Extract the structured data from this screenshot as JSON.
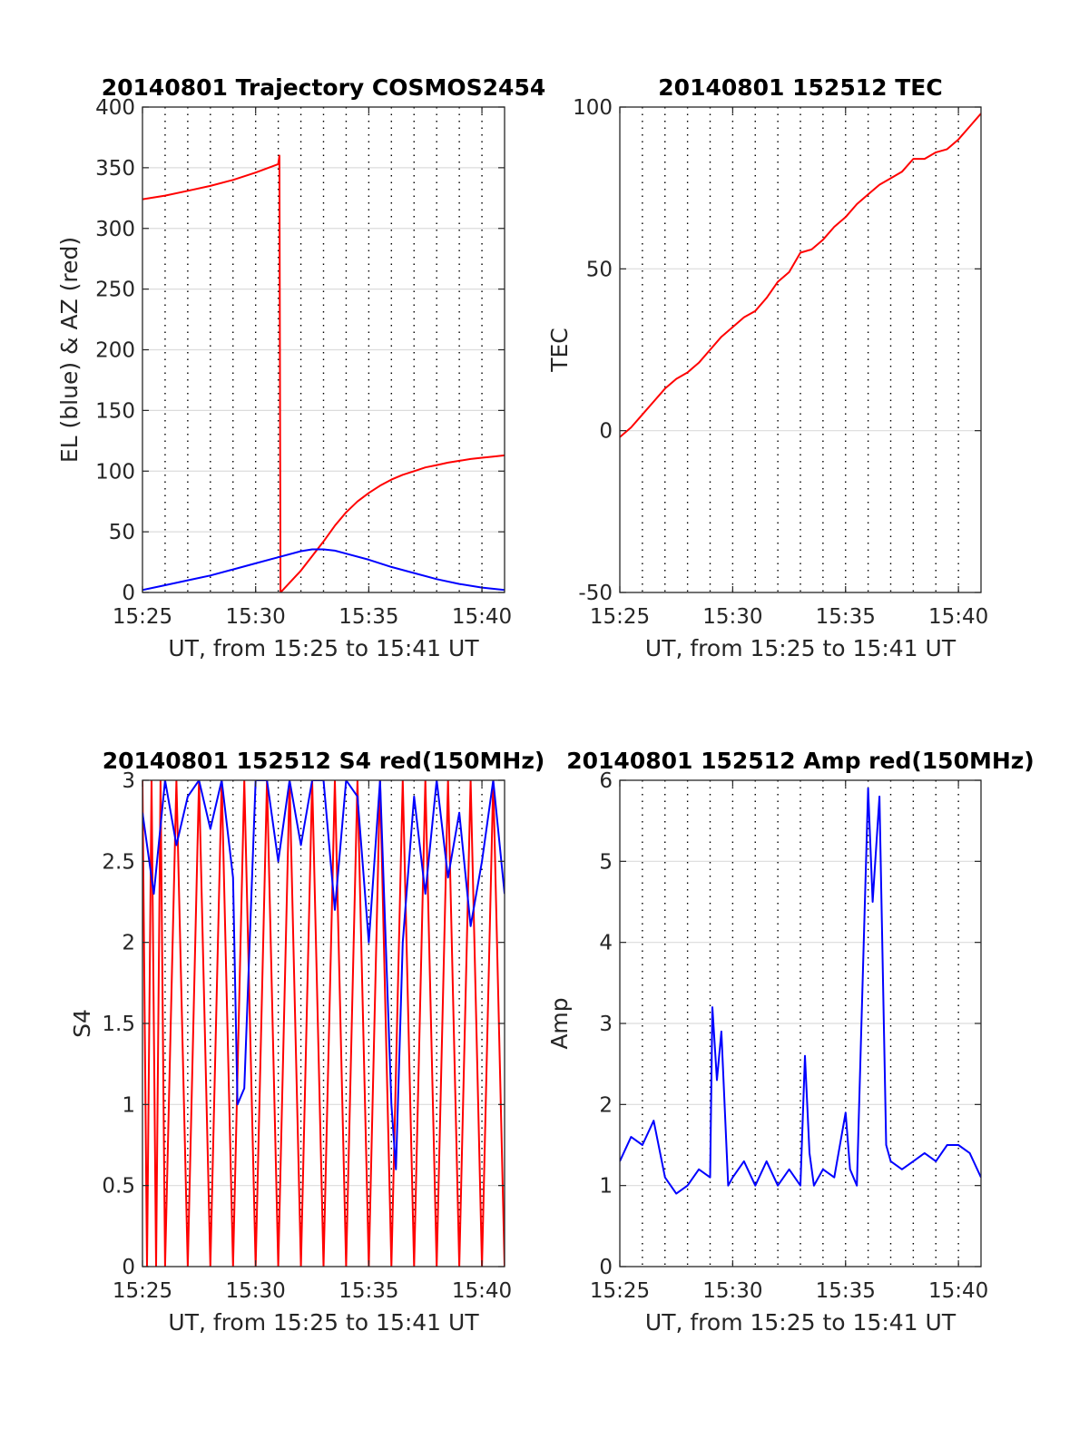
{
  "figure": {
    "background": "#ffffff",
    "colors": {
      "red": "#ff0000",
      "blue": "#0000ff",
      "axis": "#262626",
      "grid": "#dcdcdc",
      "vgrid": "#000000"
    }
  },
  "chart_data": [
    {
      "id": "trajectory",
      "type": "line",
      "title": "20140801 Trajectory COSMOS2454",
      "xlabel": "UT, from 15:25 to 15:41 UT",
      "ylabel": "EL (blue) & AZ (red)",
      "xlim": [
        0,
        16
      ],
      "ylim": [
        0,
        400
      ],
      "x_ticks": [
        0,
        5,
        10,
        15
      ],
      "x_tick_labels": [
        "15:25",
        "15:30",
        "15:35",
        "15:40"
      ],
      "y_ticks": [
        0,
        50,
        100,
        150,
        200,
        250,
        300,
        350,
        400
      ],
      "y_tick_labels": [
        "0",
        "50",
        "100",
        "150",
        "200",
        "250",
        "300",
        "350",
        "400"
      ],
      "vgrid_minutes": [
        1,
        2,
        3,
        4,
        5,
        6,
        7,
        8,
        9,
        10,
        11,
        12,
        13,
        14,
        15
      ],
      "grid": true,
      "series": [
        {
          "color": "#ff0000",
          "x": [
            0,
            1,
            2,
            3,
            4,
            5,
            6,
            6.05,
            6.1,
            6.5,
            7,
            7.5,
            8,
            8.5,
            9,
            9.5,
            10,
            10.5,
            11,
            11.5,
            12,
            12.5,
            13,
            13.5,
            14,
            14.5,
            15,
            15.5,
            16
          ],
          "y": [
            324,
            327,
            331,
            335,
            340,
            346,
            353,
            360,
            0,
            8,
            18,
            30,
            42,
            55,
            66,
            75,
            82,
            88,
            93,
            97,
            100,
            103,
            105,
            107,
            108.5,
            110,
            111,
            112,
            113
          ]
        },
        {
          "color": "#0000ff",
          "x": [
            0,
            1,
            2,
            3,
            4,
            5,
            6,
            7,
            7.5,
            8,
            8.5,
            9,
            10,
            11,
            12,
            13,
            14,
            15,
            16
          ],
          "y": [
            2,
            6,
            10,
            14,
            19,
            24,
            29,
            34,
            35.5,
            35.5,
            34.5,
            32,
            27,
            21,
            16,
            11,
            7,
            4,
            2
          ]
        }
      ]
    },
    {
      "id": "tec",
      "type": "line",
      "title": "20140801 152512 TEC",
      "xlabel": "UT, from 15:25 to 15:41 UT",
      "ylabel": "TEC",
      "xlim": [
        0,
        16
      ],
      "ylim": [
        -50,
        100
      ],
      "x_ticks": [
        0,
        5,
        10,
        15
      ],
      "x_tick_labels": [
        "15:25",
        "15:30",
        "15:35",
        "15:40"
      ],
      "y_ticks": [
        -50,
        0,
        50,
        100
      ],
      "y_tick_labels": [
        "-50",
        "0",
        "50",
        "100"
      ],
      "vgrid_minutes": [
        1,
        2,
        3,
        4,
        5,
        6,
        7,
        8,
        9,
        10,
        11,
        12,
        13,
        14,
        15
      ],
      "grid": true,
      "series": [
        {
          "color": "#ff0000",
          "x": [
            0,
            0.5,
            1,
            1.5,
            2,
            2.5,
            3,
            3.5,
            4,
            4.5,
            5,
            5.5,
            6,
            6.5,
            7,
            7.5,
            8,
            8.5,
            9,
            9.5,
            10,
            10.5,
            11,
            11.5,
            12,
            12.5,
            13,
            13.5,
            14,
            14.5,
            15,
            15.5,
            16
          ],
          "y": [
            -2,
            1,
            5,
            9,
            13,
            16,
            18,
            21,
            25,
            29,
            32,
            35,
            37,
            41,
            46,
            49,
            55,
            56,
            59,
            63,
            66,
            70,
            73,
            76,
            78,
            80,
            84,
            84,
            86,
            87,
            90,
            94,
            98
          ]
        }
      ]
    },
    {
      "id": "s4",
      "type": "line",
      "title": "20140801 152512 S4 red(150MHz)",
      "xlabel": "UT, from 15:25 to 15:41 UT",
      "ylabel": "S4",
      "xlim": [
        0,
        16
      ],
      "ylim": [
        0,
        3
      ],
      "x_ticks": [
        0,
        5,
        10,
        15
      ],
      "x_tick_labels": [
        "15:25",
        "15:30",
        "15:35",
        "15:40"
      ],
      "y_ticks": [
        0,
        0.5,
        1,
        1.5,
        2,
        2.5,
        3
      ],
      "y_tick_labels": [
        "0",
        "0.5",
        "1",
        "1.5",
        "2",
        "2.5",
        "3"
      ],
      "vgrid_minutes": [
        1,
        2,
        3,
        4,
        5,
        6,
        7,
        8,
        9,
        10,
        11,
        12,
        13,
        14,
        15
      ],
      "grid": true,
      "series": [
        {
          "color": "#ff0000",
          "x": [
            0,
            0.2,
            0.4,
            0.6,
            0.8,
            1,
            1.5,
            2,
            2.5,
            3,
            3.5,
            4,
            4.5,
            5,
            5.5,
            6,
            6.5,
            7,
            7.5,
            8,
            8.5,
            9,
            9.5,
            10,
            10.5,
            11,
            11.5,
            12,
            12.5,
            13,
            13.5,
            14,
            14.5,
            15,
            15.5,
            16
          ],
          "y": [
            3,
            0,
            3,
            0,
            3,
            0,
            3,
            0,
            3,
            0,
            3,
            0,
            3,
            0,
            3,
            0,
            3,
            0,
            3,
            0,
            3,
            0,
            3,
            0,
            3,
            0,
            3,
            0,
            3,
            0,
            3,
            0,
            3,
            0,
            3,
            0
          ]
        },
        {
          "color": "#0000ff",
          "x": [
            0,
            0.5,
            1,
            1.5,
            2,
            2.5,
            3,
            3.5,
            4,
            4.2,
            4.5,
            5,
            5.5,
            6,
            6.5,
            7,
            7.5,
            8,
            8.5,
            9,
            9.5,
            10,
            10.5,
            11,
            11.2,
            11.5,
            12,
            12.5,
            13,
            13.5,
            14,
            14.5,
            15,
            15.5,
            16
          ],
          "y": [
            2.8,
            2.3,
            3,
            2.6,
            2.9,
            3,
            2.7,
            3,
            2.4,
            1.0,
            1.1,
            3,
            3,
            2.5,
            3,
            2.6,
            3,
            3,
            2.2,
            3,
            2.9,
            2.0,
            3,
            1.0,
            0.6,
            2.0,
            2.9,
            2.3,
            3,
            2.4,
            2.8,
            2.1,
            2.5,
            3,
            2.3
          ]
        }
      ]
    },
    {
      "id": "amp",
      "type": "line",
      "title": "20140801 152512 Amp red(150MHz)",
      "xlabel": "UT, from 15:25 to 15:41 UT",
      "ylabel": "Amp",
      "xlim": [
        0,
        16
      ],
      "ylim": [
        0,
        6
      ],
      "x_ticks": [
        0,
        5,
        10,
        15
      ],
      "x_tick_labels": [
        "15:25",
        "15:30",
        "15:35",
        "15:40"
      ],
      "y_ticks": [
        0,
        1,
        2,
        3,
        4,
        5,
        6
      ],
      "y_tick_labels": [
        "0",
        "1",
        "2",
        "3",
        "4",
        "5",
        "6"
      ],
      "vgrid_minutes": [
        1,
        2,
        3,
        4,
        5,
        6,
        7,
        8,
        9,
        10,
        11,
        12,
        13,
        14,
        15
      ],
      "grid": true,
      "series": [
        {
          "color": "#0000ff",
          "x": [
            0,
            0.5,
            1,
            1.5,
            2,
            2.5,
            3,
            3.5,
            4,
            4.1,
            4.3,
            4.5,
            4.8,
            5,
            5.5,
            6,
            6.5,
            7,
            7.5,
            8,
            8.2,
            8.4,
            8.6,
            9,
            9.5,
            10,
            10.2,
            10.5,
            11,
            11.2,
            11.5,
            11.8,
            12,
            12.5,
            13,
            13.5,
            14,
            14.5,
            15,
            15.5,
            16
          ],
          "y": [
            1.3,
            1.6,
            1.5,
            1.8,
            1.1,
            0.9,
            1.0,
            1.2,
            1.1,
            3.2,
            2.3,
            2.9,
            1.0,
            1.1,
            1.3,
            1.0,
            1.3,
            1.0,
            1.2,
            1.0,
            2.6,
            1.4,
            1.0,
            1.2,
            1.1,
            1.9,
            1.2,
            1.0,
            5.9,
            4.5,
            5.8,
            1.5,
            1.3,
            1.2,
            1.3,
            1.4,
            1.3,
            1.5,
            1.5,
            1.4,
            1.1
          ]
        }
      ]
    }
  ]
}
